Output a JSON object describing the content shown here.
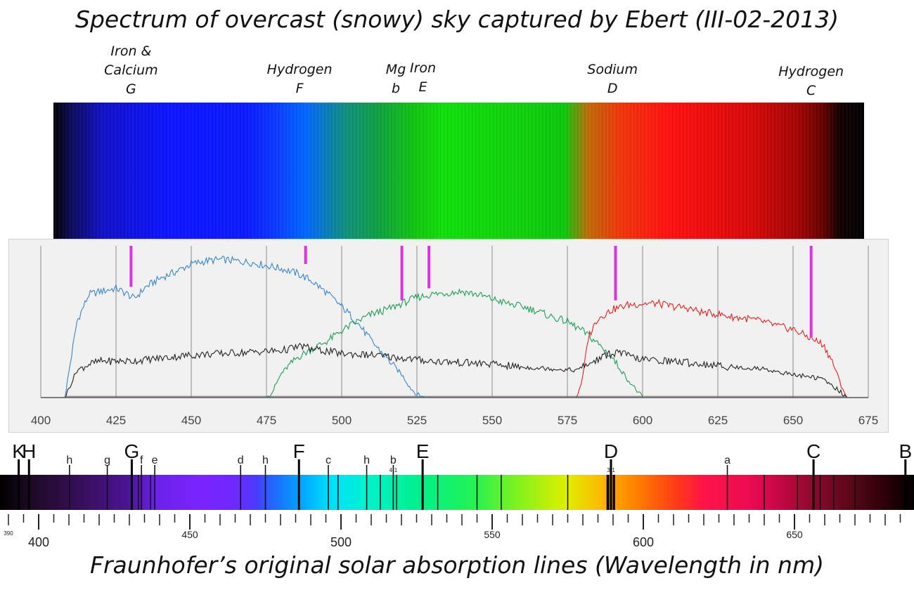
{
  "title": "Spectrum of overcast (snowy) sky captured by Ebert (III-02-2013)",
  "bottom_title": "Fraunhofer’s original solar absorption lines (Wavelength in nm)",
  "line_labels": [
    {
      "lines": [
        "Iron &",
        "Calcium",
        "G"
      ],
      "wavelength": 430
    },
    {
      "lines": [
        "Hydrogen",
        "F"
      ],
      "wavelength": 486
    },
    {
      "lines": [
        "Mg",
        "b"
      ],
      "wavelength": 518
    },
    {
      "lines": [
        "Iron",
        "E"
      ],
      "wavelength": 527
    },
    {
      "lines": [
        "Sodium",
        "D"
      ],
      "wavelength": 590
    },
    {
      "lines": [
        "Hydrogen",
        "C"
      ],
      "wavelength": 656
    }
  ],
  "chart_data": {
    "type": "line",
    "xlim": [
      400,
      675
    ],
    "x_ticks": [
      400,
      425,
      450,
      475,
      500,
      525,
      550,
      575,
      600,
      625,
      650,
      675
    ],
    "grid": true,
    "series": [
      {
        "color": "#3a86c8",
        "x": [
          408,
          412,
          416,
          420,
          425,
          429,
          431,
          435,
          440,
          445,
          450,
          455,
          460,
          465,
          470,
          475,
          480,
          485,
          490,
          495,
          500,
          505,
          510,
          515,
          520,
          523,
          525,
          528
        ],
        "y": [
          0,
          50,
          68,
          70,
          72,
          68,
          65,
          73,
          79,
          83,
          88,
          90,
          91,
          90,
          89,
          87,
          85,
          82,
          77,
          69,
          60,
          50,
          37,
          26,
          15,
          6,
          2,
          0
        ]
      },
      {
        "color": "#1f9e57",
        "x": [
          475,
          477,
          480,
          485,
          490,
          495,
          500,
          505,
          510,
          515,
          520,
          525,
          530,
          535,
          540,
          545,
          550,
          555,
          560,
          565,
          570,
          575,
          580,
          585,
          590,
          595,
          600
        ],
        "y": [
          0,
          4,
          16,
          26,
          32,
          37,
          44,
          50,
          55,
          58,
          62,
          66,
          68,
          69,
          70,
          68,
          65,
          62,
          60,
          57,
          53,
          50,
          44,
          36,
          26,
          12,
          0
        ]
      },
      {
        "color": "#e02424",
        "x": [
          578,
          580,
          582,
          585,
          590,
          595,
          600,
          605,
          610,
          615,
          620,
          625,
          630,
          635,
          640,
          645,
          650,
          655,
          660,
          663,
          666,
          668
        ],
        "y": [
          0,
          12,
          40,
          52,
          58,
          61,
          62,
          62,
          60,
          59,
          56,
          55,
          53,
          52,
          50,
          47,
          45,
          40,
          35,
          24,
          8,
          0
        ]
      },
      {
        "color": "#222222",
        "x": [
          408,
          412,
          416,
          420,
          425,
          430,
          440,
          450,
          460,
          470,
          480,
          487,
          490,
          500,
          510,
          520,
          530,
          540,
          550,
          560,
          570,
          578,
          582,
          588,
          592,
          596,
          600,
          610,
          620,
          630,
          640,
          650,
          655,
          660,
          665,
          668
        ],
        "y": [
          0,
          18,
          22,
          24,
          24,
          24,
          26,
          28,
          29,
          30,
          31,
          34,
          32,
          29,
          28,
          26,
          24,
          23,
          22,
          20,
          19,
          18,
          22,
          28,
          30,
          27,
          25,
          24,
          22,
          20,
          19,
          15,
          14,
          12,
          5,
          0
        ]
      }
    ],
    "markers": [
      {
        "x": 430,
        "top": 100,
        "bottom": 73
      },
      {
        "x": 488,
        "top": 100,
        "bottom": 88
      },
      {
        "x": 520,
        "top": 100,
        "bottom": 64
      },
      {
        "x": 529,
        "top": 100,
        "bottom": 72
      },
      {
        "x": 591,
        "top": 100,
        "bottom": 64
      },
      {
        "x": 656,
        "top": 100,
        "bottom": 40
      }
    ],
    "marker_color": "#dd33dd"
  },
  "fraunhofer": {
    "tick_labels": [
      {
        "value": 390,
        "text": "390"
      },
      {
        "value": 400,
        "text": "400"
      },
      {
        "value": 450,
        "text": "450"
      },
      {
        "value": 500,
        "text": "500"
      },
      {
        "value": 550,
        "text": "550"
      },
      {
        "value": 600,
        "text": "600"
      },
      {
        "value": 650,
        "text": "650"
      }
    ],
    "major_lines": [
      {
        "label": "K",
        "wavelength": 393.4
      },
      {
        "label": "H",
        "wavelength": 396.8
      },
      {
        "label": "G",
        "wavelength": 430.8
      },
      {
        "label": "F",
        "wavelength": 486.1
      },
      {
        "label": "E",
        "wavelength": 527.0
      },
      {
        "label": "D",
        "wavelength": 589.3
      },
      {
        "label": "C",
        "wavelength": 656.3
      },
      {
        "label": "B",
        "wavelength": 686.7
      }
    ],
    "minor_lines": [
      {
        "label": "h",
        "wavelength": 410.2
      },
      {
        "label": "g",
        "wavelength": 422.7
      },
      {
        "label": "f",
        "wavelength": 434.0
      },
      {
        "label": "e",
        "wavelength": 438.4
      },
      {
        "label": "d",
        "wavelength": 466.8
      },
      {
        "label": "h",
        "wavelength": 475.0
      },
      {
        "label": "c",
        "wavelength": 495.8
      },
      {
        "label": "h",
        "wavelength": 508.5
      },
      {
        "label": "b",
        "wavelength": 517.3
      },
      {
        "label": "a",
        "wavelength": 627.8
      }
    ],
    "sub_labels": [
      {
        "text": "4-1",
        "wavelength": 517.3
      },
      {
        "text": "3-1",
        "wavelength": 589.3
      }
    ],
    "extra_dark_lines": [
      433.0,
      437.0,
      499.0,
      513.0,
      518.4,
      532.0,
      545.0,
      553.0,
      575.0,
      588.0,
      590.5,
      640.0,
      651.0,
      658.5,
      663.0,
      670.0
    ]
  }
}
